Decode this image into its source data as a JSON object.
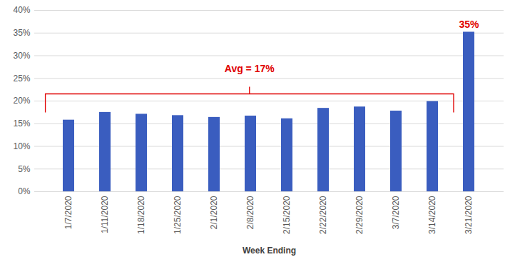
{
  "chart_data": {
    "type": "bar",
    "categories": [
      "1/7/2020",
      "1/11/2020",
      "1/18/2020",
      "1/25/2020",
      "2/1/2020",
      "2/8/2020",
      "2/15/2020",
      "2/22/2020",
      "2/29/2020",
      "3/7/2020",
      "3/14/2020",
      "3/21/2020"
    ],
    "values": [
      15.8,
      17.5,
      17.1,
      16.8,
      16.4,
      16.7,
      16.1,
      18.4,
      18.7,
      17.8,
      19.9,
      35.2
    ],
    "color": "#3a5dbf",
    "ylim": [
      0,
      40
    ],
    "yticks": [
      {
        "value": 0,
        "label": "0%"
      },
      {
        "value": 5,
        "label": "5%"
      },
      {
        "value": 10,
        "label": "10%"
      },
      {
        "value": 15,
        "label": "15%"
      },
      {
        "value": 20,
        "label": "20%"
      },
      {
        "value": 25,
        "label": "25%"
      },
      {
        "value": 30,
        "label": "30%"
      },
      {
        "value": 35,
        "label": "35%"
      },
      {
        "value": 40,
        "label": "40%"
      }
    ],
    "grid": true,
    "xlabel": "Week Ending",
    "data_labels": true,
    "value_labels": [
      null,
      null,
      null,
      null,
      null,
      null,
      null,
      null,
      null,
      null,
      null,
      "35%"
    ],
    "annotations": [
      {
        "text": "Avg = 17%",
        "from": "1/7/2020",
        "to": "3/14/2020"
      }
    ]
  }
}
